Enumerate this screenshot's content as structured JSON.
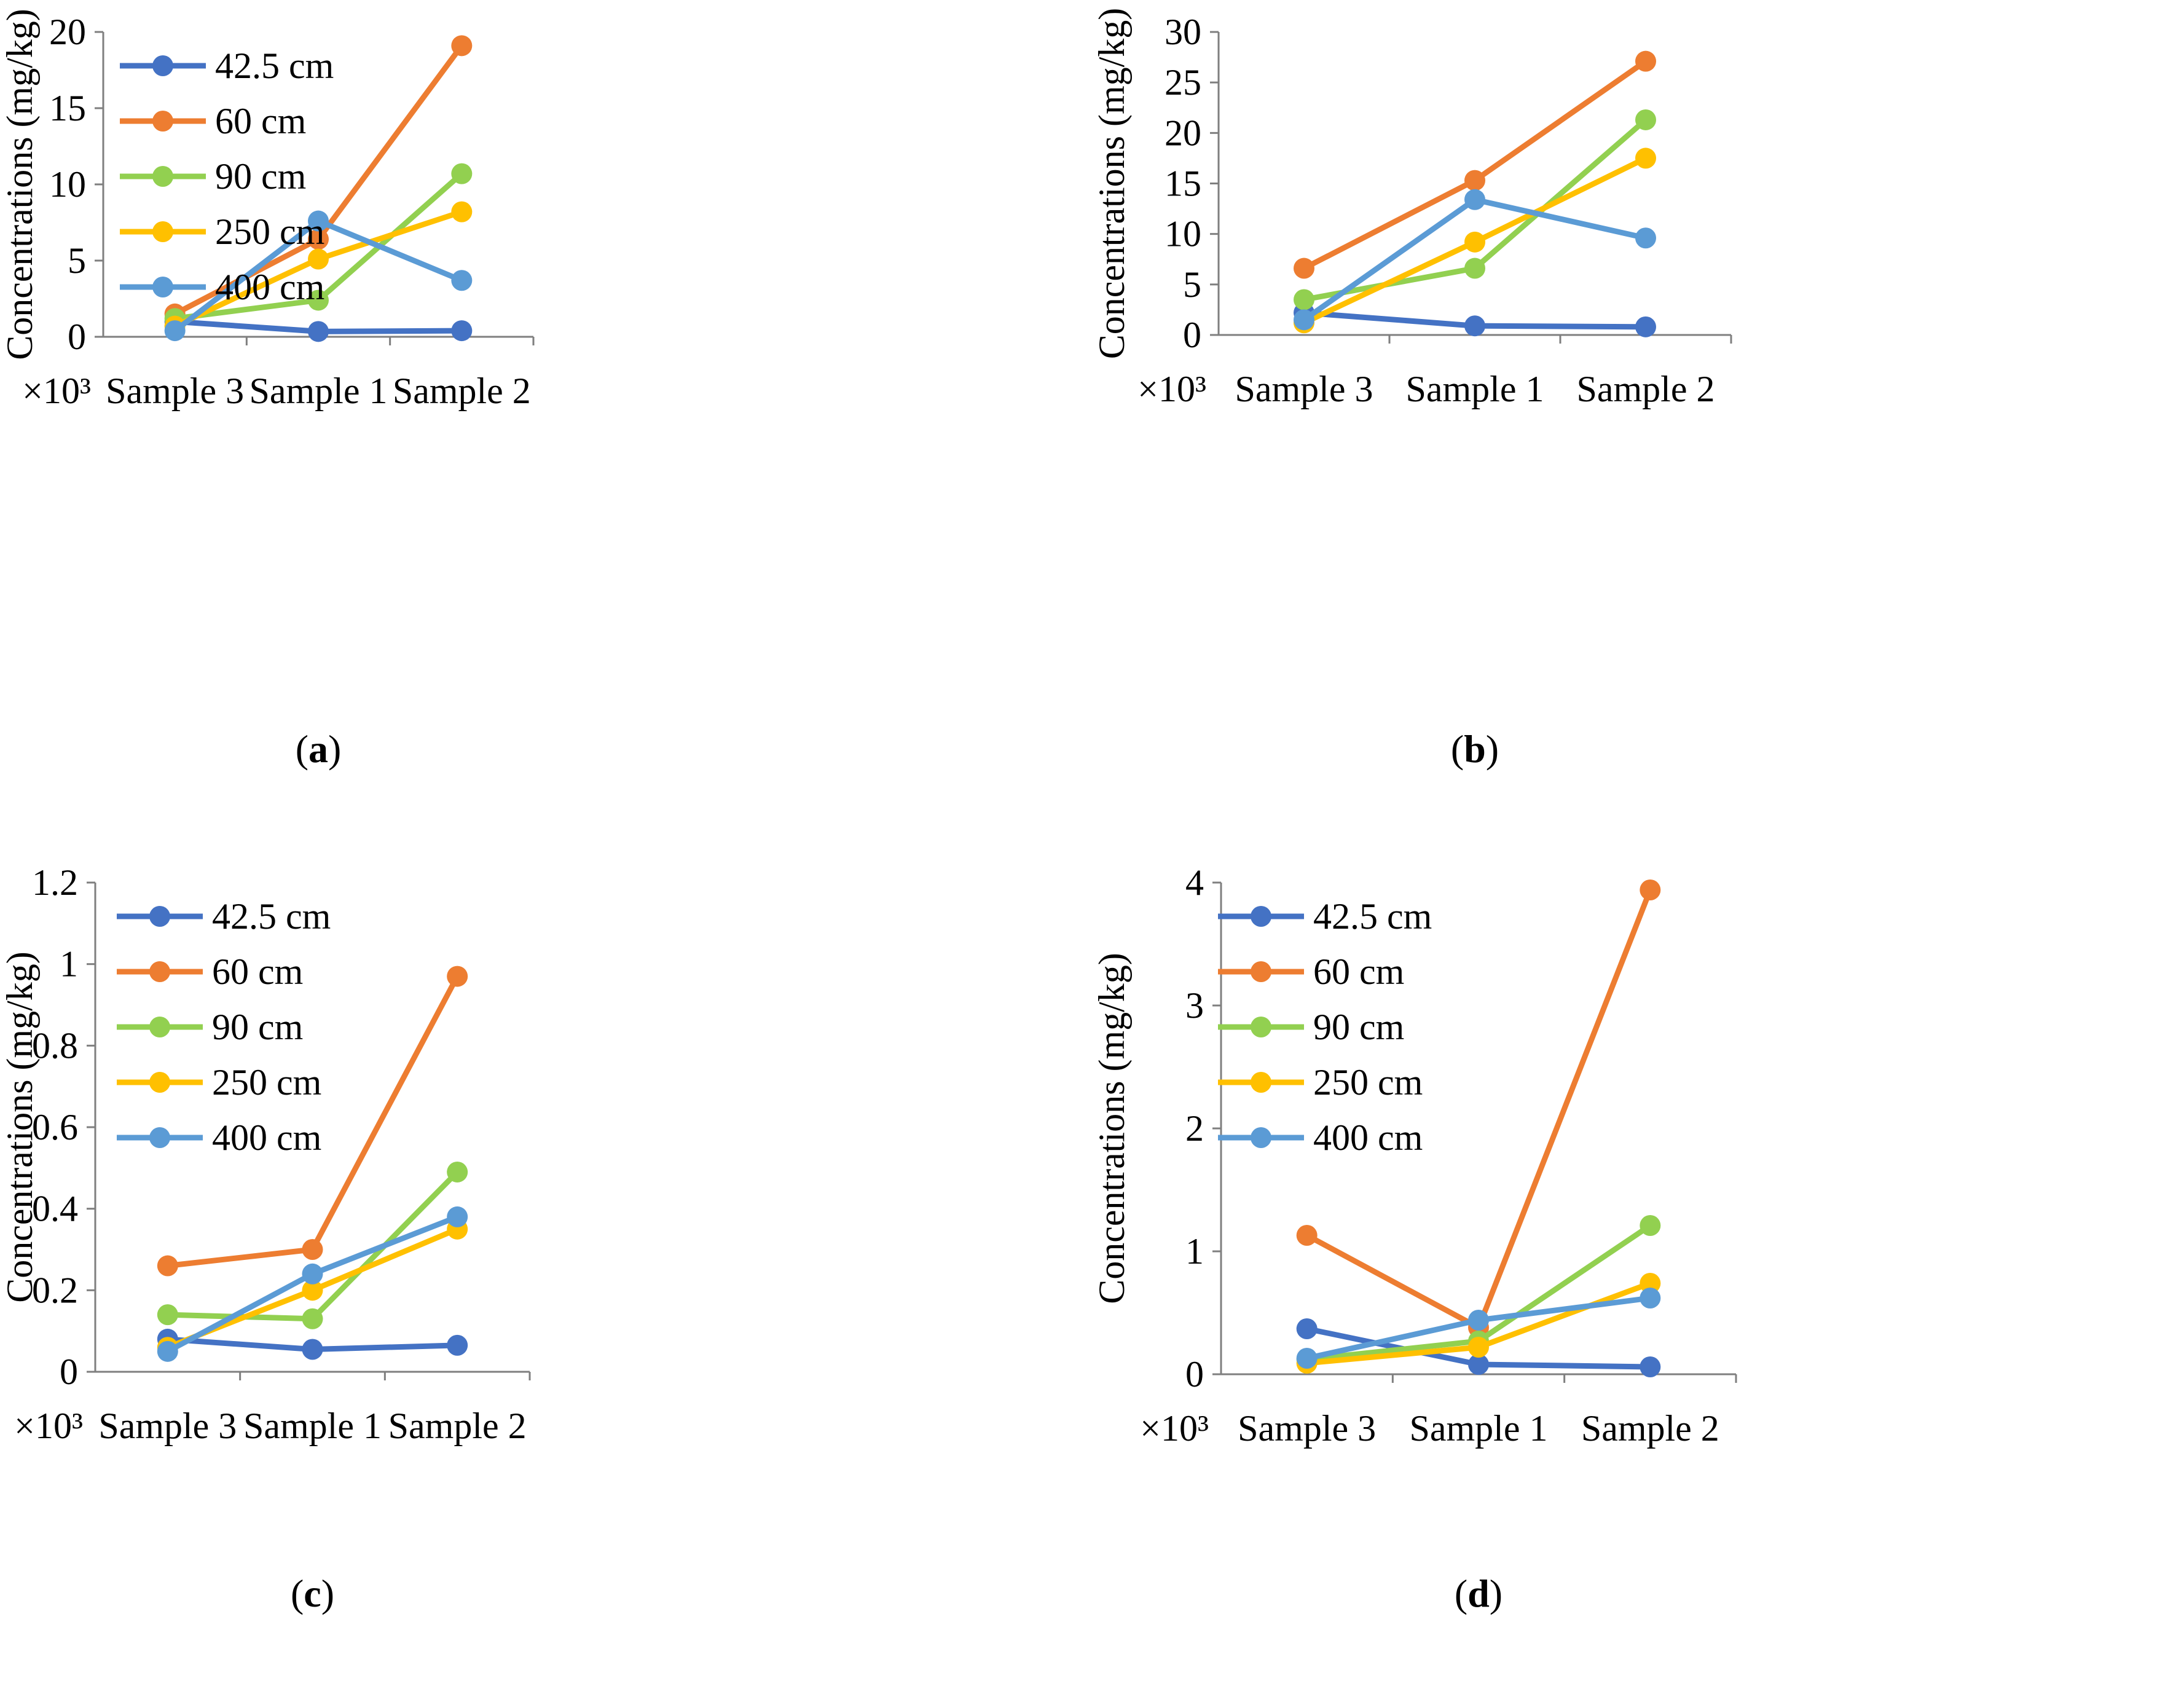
{
  "colors": {
    "42.5 cm": "#4472C4",
    "60 cm": "#ED7D31",
    "90 cm": "#92D050",
    "250 cm": "#FFC000",
    "400 cm": "#5B9BD5",
    "axis": "#7F7F7F",
    "text": "#000000"
  },
  "chart_data": [
    {
      "type": "line",
      "panel": "a",
      "panel_label": "a",
      "categories": [
        "Sample 3",
        "Sample 1",
        "Sample 2"
      ],
      "ylabel": "Concentrations (mg/kg)",
      "multiplier": "×10³",
      "ylim": [
        0,
        20
      ],
      "yticks": [
        0,
        5,
        10,
        15,
        20
      ],
      "series": [
        {
          "name": "42.5 cm",
          "values": [
            1.0,
            0.35,
            0.4
          ]
        },
        {
          "name": "60 cm",
          "values": [
            1.5,
            6.4,
            19.1
          ]
        },
        {
          "name": "90 cm",
          "values": [
            1.2,
            2.4,
            10.7
          ]
        },
        {
          "name": "250 cm",
          "values": [
            0.7,
            5.1,
            8.2
          ]
        },
        {
          "name": "400 cm",
          "values": [
            0.4,
            7.6,
            3.7
          ]
        }
      ]
    },
    {
      "type": "line",
      "panel": "b",
      "panel_label": "b",
      "categories": [
        "Sample 3",
        "Sample 1",
        "Sample 2"
      ],
      "ylabel": "Concentrations (mg/kg)",
      "multiplier": "×10³",
      "ylim": [
        0,
        30
      ],
      "yticks": [
        0,
        5,
        10,
        15,
        20,
        25,
        30
      ],
      "series": [
        {
          "name": "42.5 cm",
          "values": [
            2.2,
            0.9,
            0.8
          ]
        },
        {
          "name": "60 cm",
          "values": [
            6.6,
            15.3,
            27.1
          ]
        },
        {
          "name": "90 cm",
          "values": [
            3.5,
            6.6,
            21.3
          ]
        },
        {
          "name": "250 cm",
          "values": [
            1.2,
            9.2,
            17.5
          ]
        },
        {
          "name": "400 cm",
          "values": [
            1.5,
            13.4,
            9.6
          ]
        }
      ]
    },
    {
      "type": "line",
      "panel": "c",
      "panel_label": "c",
      "categories": [
        "Sample 3",
        "Sample 1",
        "Sample 2"
      ],
      "ylabel": "Concentrations (mg/kg)",
      "multiplier": "×10³",
      "ylim": [
        0,
        1.2
      ],
      "yticks": [
        0,
        0.2,
        0.4,
        0.6,
        0.8,
        1,
        1.2
      ],
      "series": [
        {
          "name": "42.5 cm",
          "values": [
            0.08,
            0.055,
            0.065
          ]
        },
        {
          "name": "60 cm",
          "values": [
            0.26,
            0.3,
            0.97
          ]
        },
        {
          "name": "90 cm",
          "values": [
            0.14,
            0.13,
            0.49
          ]
        },
        {
          "name": "250 cm",
          "values": [
            0.06,
            0.2,
            0.35
          ]
        },
        {
          "name": "400 cm",
          "values": [
            0.05,
            0.24,
            0.38
          ]
        }
      ]
    },
    {
      "type": "line",
      "panel": "d",
      "panel_label": "d",
      "categories": [
        "Sample 3",
        "Sample 1",
        "Sample 2"
      ],
      "ylabel": "Concentrations (mg/kg)",
      "multiplier": "×10³",
      "ylim": [
        0,
        4
      ],
      "yticks": [
        0,
        1,
        2,
        3,
        4
      ],
      "series": [
        {
          "name": "42.5 cm",
          "values": [
            0.37,
            0.08,
            0.06
          ]
        },
        {
          "name": "60 cm",
          "values": [
            1.13,
            0.38,
            3.94
          ]
        },
        {
          "name": "90 cm",
          "values": [
            0.12,
            0.27,
            1.21
          ]
        },
        {
          "name": "250 cm",
          "values": [
            0.09,
            0.22,
            0.74
          ]
        },
        {
          "name": "400 cm",
          "values": [
            0.13,
            0.44,
            0.62
          ]
        }
      ]
    }
  ]
}
